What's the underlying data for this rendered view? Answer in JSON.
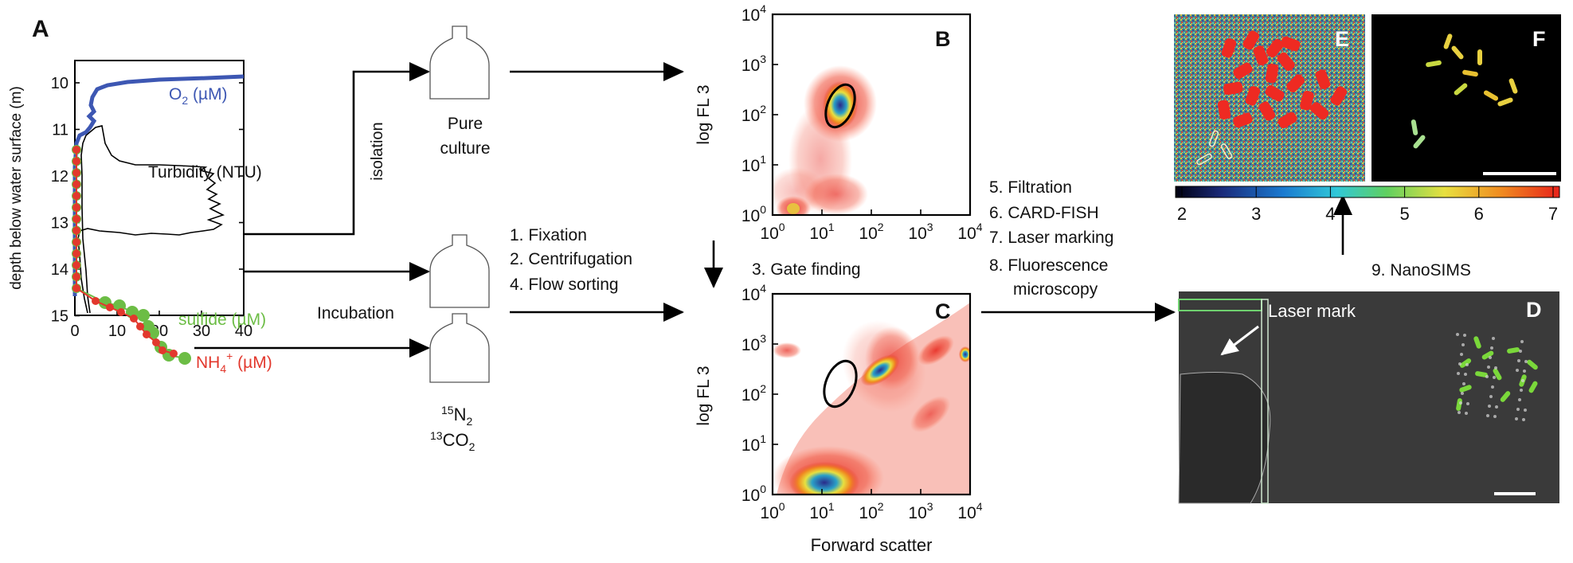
{
  "panel_letters": {
    "a": "A",
    "b": "B",
    "c": "C",
    "d": "D",
    "e": "E",
    "f": "F"
  },
  "profile": {
    "ylabel": "depth below water surface (m)",
    "yticks": [
      "10",
      "11",
      "12",
      "13",
      "14",
      "15"
    ],
    "xticks": [
      "0",
      "10",
      "20",
      "30",
      "40"
    ],
    "labels": {
      "o2": "O",
      "o2_sub": "2",
      "o2_unit": " (µM)",
      "turbidity": "Turbidity (NTU)",
      "sulfide": "sulfide (µM)",
      "nh4": "NH",
      "nh4_sub": "4",
      "nh4_sup": "+",
      "nh4_unit": " (µM)"
    },
    "colors": {
      "o2": "#3d57b3",
      "turbidity": "#000000",
      "sulfide": "#6cbd45",
      "nh4": "#e2382d"
    }
  },
  "flow": {
    "isolation": "isolation",
    "incubation": "Incubation",
    "pure_culture_line1": "Pure",
    "pure_culture_line2": "culture",
    "n2_sup": "15",
    "n2": "N",
    "n2_sub": "2",
    "co2_sup": "13",
    "co2": "CO",
    "co2_sub": "2",
    "steps_a": [
      "1. Fixation",
      "2. Centrifugation",
      "4. Flow sorting"
    ],
    "gate_finding": "3. Gate finding",
    "steps_b": [
      "5. Filtration",
      "6. CARD-FISH",
      "7. Laser marking",
      "8. Fluorescence",
      "microscopy"
    ],
    "nanosims": "9. NanoSIMS",
    "laser_mark": "Laser mark"
  },
  "cytometry": {
    "ylabel": "log FL 3",
    "xlabel": "Forward scatter",
    "tick_base": "10",
    "tick_exps": [
      "0",
      "1",
      "2",
      "3",
      "4"
    ]
  },
  "colorbar": {
    "ticks": [
      "2",
      "3",
      "4",
      "5",
      "6",
      "7"
    ]
  }
}
